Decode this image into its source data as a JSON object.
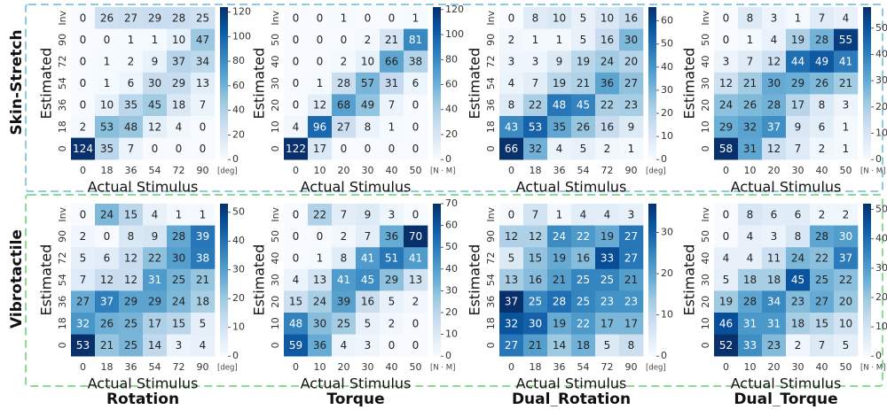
{
  "rows": [
    {
      "label": "Skin-Stretch",
      "box_color": "#8ec9e6"
    },
    {
      "label": "Vibrotactile",
      "box_color": "#8fdc8f"
    }
  ],
  "columns": [
    {
      "label": "Rotation"
    },
    {
      "label": "Torque"
    },
    {
      "label": "Dual_Rotation"
    },
    {
      "label": "Dual_Torque"
    }
  ],
  "colorscale": {
    "low": "#f7fbff",
    "mid": "#6baed6",
    "high": "#08306b"
  },
  "chart_data": [
    {
      "type": "heatmap",
      "row": 0,
      "col": 0,
      "title": "",
      "xlabel": "Actual Stimulus",
      "ylabel": "Estimated",
      "x_ticks": [
        "0",
        "18",
        "36",
        "54",
        "72",
        "90"
      ],
      "x_unit": "[deg]",
      "y_ticks": [
        "Inv",
        "90",
        "72",
        "54",
        "36",
        "18",
        "0"
      ],
      "vmin": 0,
      "vmax": 124,
      "cbar_ticks": [
        0,
        20,
        40,
        60,
        80,
        100,
        120
      ],
      "values": [
        [
          0,
          26,
          27,
          29,
          28,
          25
        ],
        [
          0,
          0,
          1,
          1,
          10,
          47
        ],
        [
          0,
          1,
          2,
          9,
          37,
          34
        ],
        [
          0,
          1,
          6,
          30,
          29,
          13
        ],
        [
          0,
          10,
          35,
          45,
          18,
          7
        ],
        [
          2,
          53,
          48,
          12,
          4,
          0
        ],
        [
          124,
          35,
          7,
          0,
          0,
          0
        ]
      ]
    },
    {
      "type": "heatmap",
      "row": 0,
      "col": 1,
      "title": "",
      "xlabel": "Actual Stimulus",
      "ylabel": "Estimated",
      "x_ticks": [
        "0",
        "10",
        "20",
        "30",
        "40",
        "50"
      ],
      "x_unit": "[N · M]",
      "y_ticks": [
        "Inv",
        "50",
        "40",
        "30",
        "20",
        "10",
        "0"
      ],
      "vmin": 0,
      "vmax": 122,
      "cbar_ticks": [
        0,
        20,
        40,
        60,
        80,
        100,
        120
      ],
      "values": [
        [
          0,
          0,
          1,
          0,
          0,
          1
        ],
        [
          0,
          0,
          0,
          2,
          21,
          81
        ],
        [
          0,
          0,
          2,
          10,
          66,
          38
        ],
        [
          0,
          1,
          28,
          57,
          31,
          6
        ],
        [
          0,
          12,
          68,
          49,
          7,
          0
        ],
        [
          4,
          96,
          27,
          8,
          1,
          0
        ],
        [
          122,
          17,
          0,
          0,
          0,
          0
        ]
      ]
    },
    {
      "type": "heatmap",
      "row": 0,
      "col": 2,
      "title": "",
      "xlabel": "Actual Stimulus",
      "ylabel": "Estimated",
      "x_ticks": [
        "0",
        "18",
        "36",
        "54",
        "72",
        "90"
      ],
      "x_unit": "[deg]",
      "y_ticks": [
        "Inv",
        "90",
        "72",
        "54",
        "36",
        "18",
        "0"
      ],
      "vmin": 0,
      "vmax": 66,
      "cbar_ticks": [
        0,
        10,
        20,
        30,
        40,
        50,
        60
      ],
      "values": [
        [
          0,
          8,
          10,
          5,
          10,
          16
        ],
        [
          2,
          1,
          1,
          5,
          16,
          30
        ],
        [
          3,
          3,
          9,
          19,
          24,
          20
        ],
        [
          4,
          7,
          19,
          21,
          36,
          27
        ],
        [
          8,
          22,
          48,
          45,
          22,
          23
        ],
        [
          43,
          53,
          35,
          26,
          16,
          9
        ],
        [
          66,
          32,
          4,
          5,
          2,
          1
        ]
      ]
    },
    {
      "type": "heatmap",
      "row": 0,
      "col": 3,
      "title": "",
      "xlabel": "Actual Stimulus",
      "ylabel": "Estimated",
      "x_ticks": [
        "0",
        "10",
        "20",
        "30",
        "40",
        "50"
      ],
      "x_unit": "[N · M]",
      "y_ticks": [
        "Inv",
        "50",
        "40",
        "30",
        "20",
        "10",
        "0"
      ],
      "vmin": 0,
      "vmax": 58,
      "cbar_ticks": [
        0,
        10,
        20,
        30,
        40,
        50
      ],
      "values": [
        [
          0,
          8,
          3,
          1,
          7,
          4
        ],
        [
          0,
          1,
          4,
          19,
          28,
          55
        ],
        [
          3,
          7,
          12,
          44,
          49,
          41
        ],
        [
          12,
          21,
          30,
          29,
          26,
          21
        ],
        [
          24,
          26,
          28,
          17,
          8,
          3
        ],
        [
          29,
          32,
          37,
          9,
          6,
          1
        ],
        [
          58,
          31,
          12,
          7,
          2,
          1
        ]
      ]
    },
    {
      "type": "heatmap",
      "row": 1,
      "col": 0,
      "title": "",
      "xlabel": "Actual Stimulus",
      "ylabel": "Estimated",
      "x_ticks": [
        "0",
        "18",
        "36",
        "54",
        "72",
        "90"
      ],
      "x_unit": "[deg]",
      "y_ticks": [
        "Inv",
        "90",
        "72",
        "54",
        "36",
        "18",
        "0"
      ],
      "vmin": 0,
      "vmax": 53,
      "cbar_ticks": [
        0,
        10,
        20,
        30,
        40,
        50
      ],
      "values": [
        [
          0,
          24,
          15,
          4,
          1,
          1
        ],
        [
          2,
          0,
          8,
          9,
          28,
          39
        ],
        [
          5,
          6,
          12,
          22,
          30,
          38
        ],
        [
          7,
          12,
          12,
          31,
          25,
          21
        ],
        [
          27,
          37,
          29,
          29,
          24,
          18
        ],
        [
          32,
          26,
          25,
          17,
          15,
          5
        ],
        [
          53,
          21,
          25,
          14,
          3,
          4
        ]
      ]
    },
    {
      "type": "heatmap",
      "row": 1,
      "col": 1,
      "title": "",
      "xlabel": "Actual Stimulus",
      "ylabel": "Estimated",
      "x_ticks": [
        "0",
        "10",
        "20",
        "30",
        "40",
        "50"
      ],
      "x_unit": "[N · M]",
      "y_ticks": [
        "Inv",
        "50",
        "40",
        "30",
        "20",
        "10",
        "0"
      ],
      "vmin": 0,
      "vmax": 70,
      "cbar_ticks": [
        0,
        10,
        20,
        30,
        40,
        50,
        60,
        70
      ],
      "values": [
        [
          0,
          22,
          7,
          9,
          3,
          0
        ],
        [
          0,
          0,
          2,
          7,
          36,
          70
        ],
        [
          0,
          1,
          8,
          41,
          51,
          41
        ],
        [
          4,
          13,
          41,
          45,
          29,
          13
        ],
        [
          15,
          24,
          39,
          16,
          5,
          2
        ],
        [
          48,
          30,
          25,
          5,
          2,
          0
        ],
        [
          59,
          36,
          4,
          3,
          0,
          0
        ]
      ]
    },
    {
      "type": "heatmap",
      "row": 1,
      "col": 2,
      "title": "",
      "xlabel": "Actual Stimulus",
      "ylabel": "Estimated",
      "x_ticks": [
        "0",
        "18",
        "36",
        "54",
        "72",
        "90"
      ],
      "x_unit": "[deg]",
      "y_ticks": [
        "Inv",
        "90",
        "72",
        "54",
        "36",
        "18",
        "0"
      ],
      "vmin": 0,
      "vmax": 37,
      "cbar_ticks": [
        0,
        10,
        20,
        30
      ],
      "values": [
        [
          0,
          7,
          1,
          4,
          4,
          3
        ],
        [
          12,
          12,
          24,
          22,
          19,
          27
        ],
        [
          5,
          15,
          19,
          16,
          33,
          27
        ],
        [
          13,
          16,
          21,
          25,
          25,
          21
        ],
        [
          37,
          25,
          28,
          25,
          23,
          23
        ],
        [
          32,
          30,
          19,
          22,
          17,
          17
        ],
        [
          27,
          21,
          14,
          18,
          5,
          8
        ]
      ]
    },
    {
      "type": "heatmap",
      "row": 1,
      "col": 3,
      "title": "",
      "xlabel": "Actual Stimulus",
      "ylabel": "Estimated",
      "x_ticks": [
        "0",
        "10",
        "20",
        "30",
        "40",
        "50"
      ],
      "x_unit": "[N · M]",
      "y_ticks": [
        "Inv",
        "50",
        "40",
        "30",
        "20",
        "10",
        "0"
      ],
      "vmin": 0,
      "vmax": 52,
      "cbar_ticks": [
        0,
        10,
        20,
        30,
        40,
        50
      ],
      "values": [
        [
          0,
          8,
          6,
          6,
          2,
          2
        ],
        [
          0,
          4,
          3,
          8,
          28,
          30
        ],
        [
          4,
          4,
          11,
          24,
          22,
          37
        ],
        [
          5,
          18,
          18,
          45,
          25,
          22
        ],
        [
          19,
          28,
          34,
          23,
          27,
          20
        ],
        [
          46,
          31,
          31,
          18,
          15,
          10
        ],
        [
          52,
          33,
          23,
          2,
          7,
          5
        ]
      ]
    }
  ]
}
